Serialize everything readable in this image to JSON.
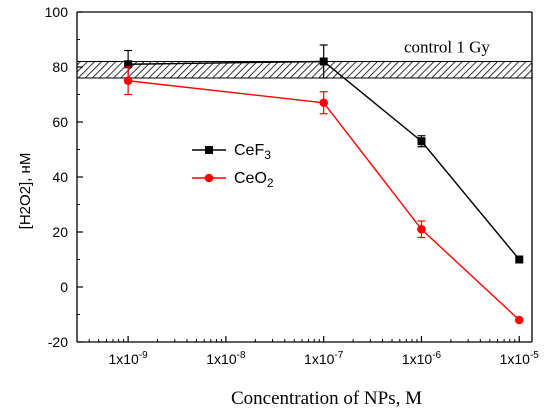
{
  "chart_data": {
    "type": "line",
    "xlabel": "Concentration of NPs, M",
    "ylabel": "[H2O2], нM",
    "xscale": "log",
    "xlim": [
      3e-10,
      1.35e-05
    ],
    "ylim": [
      -20,
      100
    ],
    "yticks": [
      -20,
      0,
      20,
      40,
      60,
      80,
      100
    ],
    "xticks": [
      {
        "value": 1e-09,
        "mantissa": "1x10",
        "exponent": "-9"
      },
      {
        "value": 1e-08,
        "mantissa": "1x10",
        "exponent": "-8"
      },
      {
        "value": 1e-07,
        "mantissa": "1x10",
        "exponent": "-7"
      },
      {
        "value": 1e-06,
        "mantissa": "1x10",
        "exponent": "-6"
      },
      {
        "value": 1e-05,
        "mantissa": "1x10",
        "exponent": "-5"
      }
    ],
    "series": [
      {
        "name": "CeF3",
        "label_base": "CeF",
        "label_sub": "3",
        "color": "#000000",
        "marker": "square",
        "x": [
          1e-09,
          1e-07,
          1e-06,
          1e-05
        ],
        "y": [
          81,
          82,
          53,
          10
        ],
        "err": [
          5,
          6,
          2,
          0
        ]
      },
      {
        "name": "CeO2",
        "label_base": "CeO",
        "label_sub": "2",
        "color": "#ff0000",
        "marker": "circle",
        "x": [
          1e-09,
          1e-07,
          1e-06,
          1e-05
        ],
        "y": [
          75,
          67,
          21,
          -12
        ],
        "err": [
          5,
          4,
          3,
          0
        ]
      }
    ],
    "reference_band": {
      "label": "control 1 Gy",
      "ymin": 76,
      "ymax": 82
    },
    "legend_position": "left-center",
    "grid": false
  }
}
